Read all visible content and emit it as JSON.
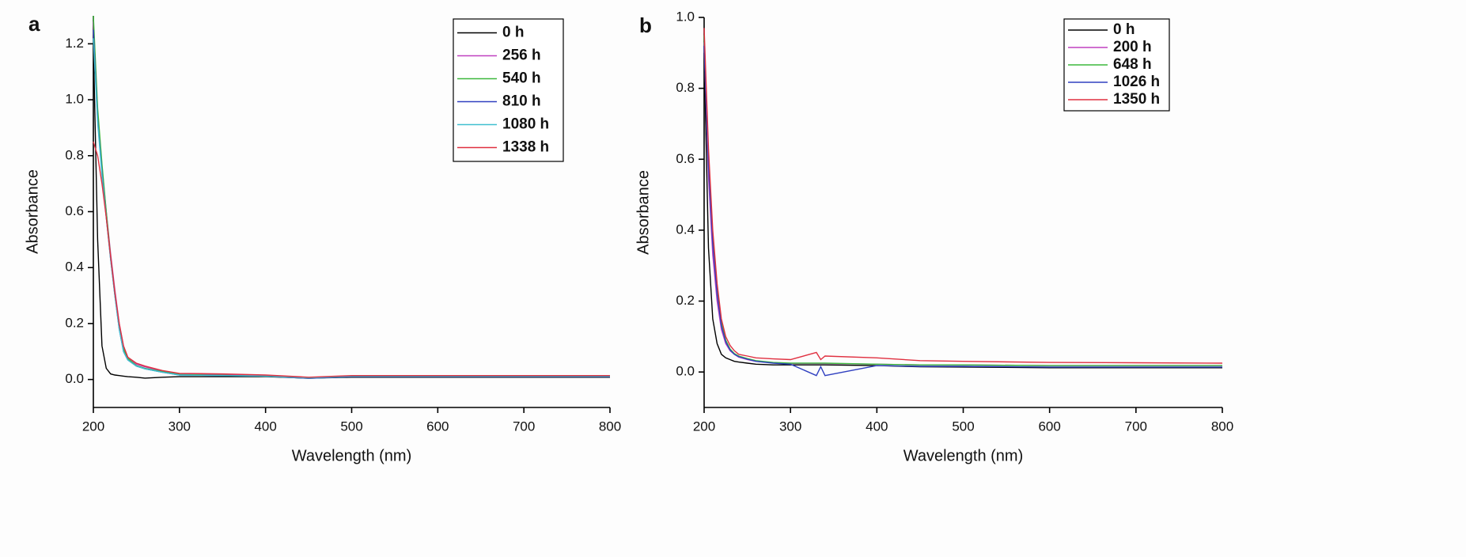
{
  "chart_data": [
    {
      "type": "line",
      "panel_label": "a",
      "x_label": "Wavelength (nm)",
      "y_label": "Absorbance",
      "xlim": [
        200,
        800
      ],
      "ylim": [
        -0.1,
        1.3
      ],
      "xticks": [
        200,
        300,
        400,
        500,
        600,
        700,
        800
      ],
      "yticks": [
        {
          "value": 0,
          "label": "0.0"
        },
        0.2,
        0.4,
        0.6,
        0.8,
        {
          "value": 1,
          "label": "1.0"
        },
        1.2
      ],
      "legend": "upper right",
      "x": [
        200,
        205,
        210,
        215,
        220,
        225,
        230,
        235,
        240,
        250,
        260,
        280,
        300,
        350,
        400,
        450,
        500,
        600,
        700,
        800
      ],
      "series": [
        {
          "name": "0 h",
          "color": "#000000",
          "values": [
            1.2,
            0.5,
            0.12,
            0.04,
            0.02,
            0.016,
            0.014,
            0.012,
            0.01,
            0.008,
            0.005,
            0.008,
            0.01,
            0.01,
            0.01,
            0.005,
            0.008,
            0.008,
            0.008,
            0.008
          ]
        },
        {
          "name": "256 h",
          "color": "#c040c0",
          "values": [
            1.28,
            0.95,
            0.76,
            0.6,
            0.45,
            0.32,
            0.2,
            0.12,
            0.08,
            0.055,
            0.045,
            0.03,
            0.02,
            0.018,
            0.014,
            0.005,
            0.012,
            0.012,
            0.012,
            0.012
          ]
        },
        {
          "name": "540 h",
          "color": "#3cb83c",
          "values": [
            1.3,
            0.97,
            0.77,
            0.6,
            0.44,
            0.31,
            0.19,
            0.11,
            0.075,
            0.05,
            0.04,
            0.028,
            0.018,
            0.015,
            0.012,
            0.004,
            0.01,
            0.01,
            0.01,
            0.01
          ]
        },
        {
          "name": "810 h",
          "color": "#3040c0",
          "values": [
            1.25,
            0.93,
            0.74,
            0.58,
            0.43,
            0.3,
            0.18,
            0.1,
            0.07,
            0.048,
            0.038,
            0.026,
            0.016,
            0.014,
            0.012,
            0.004,
            0.01,
            0.01,
            0.01,
            0.01
          ]
        },
        {
          "name": "1080 h",
          "color": "#40c0d0",
          "values": [
            1.22,
            0.92,
            0.73,
            0.58,
            0.43,
            0.3,
            0.18,
            0.1,
            0.07,
            0.048,
            0.038,
            0.026,
            0.016,
            0.014,
            0.012,
            0.006,
            0.012,
            0.012,
            0.012,
            0.012
          ]
        },
        {
          "name": "1338 h",
          "color": "#e03040",
          "values": [
            0.85,
            0.8,
            0.7,
            0.58,
            0.44,
            0.31,
            0.2,
            0.12,
            0.08,
            0.058,
            0.048,
            0.032,
            0.022,
            0.02,
            0.016,
            0.008,
            0.014,
            0.014,
            0.014,
            0.014
          ]
        }
      ]
    },
    {
      "type": "line",
      "panel_label": "b",
      "x_label": "Wavelength (nm)",
      "y_label": "Absorbance",
      "xlim": [
        200,
        800
      ],
      "ylim": [
        -0.1,
        1
      ],
      "xticks": [
        200,
        300,
        400,
        500,
        600,
        700,
        800
      ],
      "yticks": [
        {
          "value": 0,
          "label": "0.0"
        },
        0.2,
        0.4,
        0.6,
        0.8,
        {
          "value": 1,
          "label": "1.0"
        }
      ],
      "legend": "upper right",
      "x": [
        200,
        205,
        210,
        215,
        220,
        225,
        230,
        235,
        240,
        250,
        260,
        280,
        300,
        330,
        335,
        340,
        400,
        450,
        500,
        600,
        700,
        800
      ],
      "series": [
        {
          "name": "0 h",
          "color": "#000000",
          "values": [
            0.9,
            0.35,
            0.15,
            0.08,
            0.05,
            0.04,
            0.035,
            0.03,
            0.028,
            0.025,
            0.022,
            0.02,
            0.02,
            0.02,
            0.02,
            0.02,
            0.018,
            0.015,
            0.014,
            0.012,
            0.012,
            0.012
          ]
        },
        {
          "name": "200 h",
          "color": "#c040c0",
          "values": [
            0.93,
            0.55,
            0.33,
            0.2,
            0.12,
            0.08,
            0.06,
            0.05,
            0.042,
            0.035,
            0.03,
            0.026,
            0.024,
            0.024,
            0.024,
            0.024,
            0.022,
            0.02,
            0.02,
            0.018,
            0.018,
            0.018
          ]
        },
        {
          "name": "648 h",
          "color": "#3cb83c",
          "values": [
            0.95,
            0.6,
            0.38,
            0.23,
            0.14,
            0.09,
            0.065,
            0.052,
            0.045,
            0.038,
            0.032,
            0.027,
            0.025,
            0.025,
            0.025,
            0.025,
            0.022,
            0.02,
            0.02,
            0.018,
            0.018,
            0.018
          ]
        },
        {
          "name": "1026 h",
          "color": "#3040c0",
          "values": [
            0.92,
            0.58,
            0.36,
            0.22,
            0.13,
            0.085,
            0.062,
            0.05,
            0.043,
            0.036,
            0.03,
            0.025,
            0.022,
            -0.01,
            0.015,
            -0.01,
            0.018,
            0.016,
            0.016,
            0.014,
            0.014,
            0.014
          ]
        },
        {
          "name": "1350 h",
          "color": "#e03040",
          "values": [
            0.97,
            0.63,
            0.4,
            0.25,
            0.15,
            0.1,
            0.075,
            0.06,
            0.05,
            0.045,
            0.04,
            0.037,
            0.035,
            0.055,
            0.035,
            0.045,
            0.04,
            0.032,
            0.03,
            0.027,
            0.026,
            0.025
          ]
        }
      ]
    }
  ]
}
